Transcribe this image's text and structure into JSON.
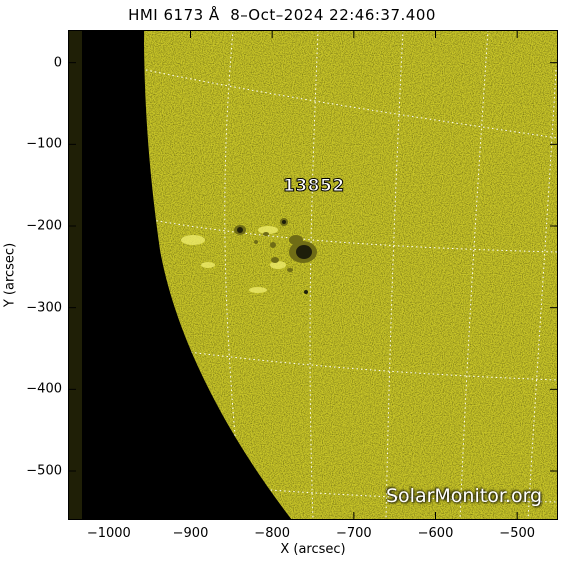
{
  "title": "HMI 6173 Å  8–Oct–2024 22:46:37.400",
  "axes": {
    "xlabel": "X (arcsec)",
    "ylabel": "Y (arcsec)",
    "xticks": [
      "−1000",
      "−900",
      "−800",
      "−700",
      "−600",
      "−500"
    ],
    "yticks": [
      "0",
      "−100",
      "−200",
      "−300",
      "−400",
      "−500"
    ],
    "xlim": [
      -1050,
      -450
    ],
    "ylim": [
      -560,
      40
    ]
  },
  "active_region": {
    "label": "13852",
    "x": -765,
    "y": -235
  },
  "watermark": "SolarMonitor.org",
  "colors": {
    "disk": "#c9c628",
    "space": "#000000",
    "edge_strip": "#1f1f06",
    "spot": "#1e1e0a",
    "penumbra": "#6f6c16",
    "grid": "#ffffff"
  }
}
